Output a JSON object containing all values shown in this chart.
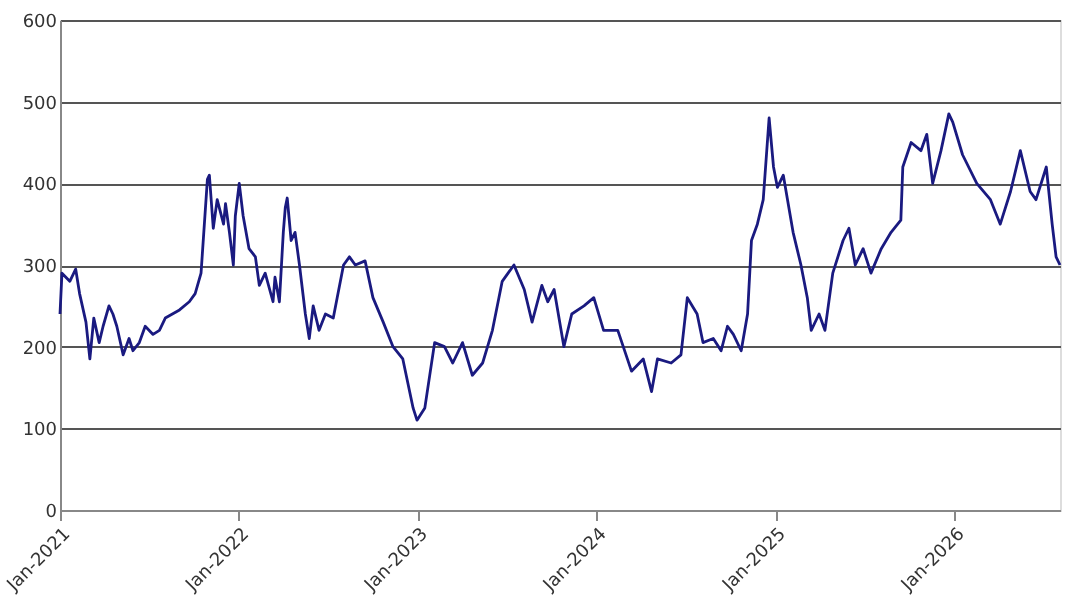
{
  "chart_data": {
    "type": "line",
    "x": [
      "2021-01-01",
      "2021-01-05",
      "2021-01-21",
      "2021-02-02",
      "2021-02-10",
      "2021-02-23",
      "2021-03-03",
      "2021-03-11",
      "2021-03-22",
      "2021-03-30",
      "2021-04-11",
      "2021-04-19",
      "2021-04-27",
      "2021-05-10",
      "2021-05-22",
      "2021-05-30",
      "2021-06-12",
      "2021-06-24",
      "2021-07-10",
      "2021-07-23",
      "2021-08-04",
      "2021-09-02",
      "2021-09-22",
      "2021-10-04",
      "2021-10-16",
      "2021-10-29",
      "2021-11-02",
      "2021-11-10",
      "2021-11-18",
      "2021-12-01",
      "2021-12-05",
      "2021-12-13",
      "2021-12-21",
      "2021-12-25",
      "2022-01-02",
      "2022-01-10",
      "2022-01-22",
      "2022-02-04",
      "2022-02-12",
      "2022-02-24",
      "2022-03-12",
      "2022-03-16",
      "2022-03-25",
      "2022-04-02",
      "2022-04-06",
      "2022-04-10",
      "2022-04-18",
      "2022-04-26",
      "2022-05-05",
      "2022-05-17",
      "2022-05-25",
      "2022-06-02",
      "2022-06-14",
      "2022-06-27",
      "2022-07-13",
      "2022-07-21",
      "2022-08-03",
      "2022-08-15",
      "2022-08-27",
      "2022-09-16",
      "2022-10-02",
      "2022-10-23",
      "2022-11-12",
      "2022-12-02",
      "2022-12-23",
      "2022-12-31",
      "2023-01-16",
      "2023-02-05",
      "2023-02-25",
      "2023-03-14",
      "2023-04-03",
      "2023-04-23",
      "2023-05-14",
      "2023-06-03",
      "2023-06-23",
      "2023-07-05",
      "2023-07-17",
      "2023-08-07",
      "2023-08-23",
      "2023-09-12",
      "2023-09-24",
      "2023-10-07",
      "2023-10-27",
      "2023-11-12",
      "2023-12-07",
      "2023-12-27",
      "2024-01-16",
      "2024-02-14",
      "2024-03-13",
      "2024-04-06",
      "2024-04-23",
      "2024-05-05",
      "2024-06-02",
      "2024-06-22",
      "2024-07-05",
      "2024-07-25",
      "2024-08-06",
      "2024-08-27",
      "2024-09-12",
      "2024-09-25",
      "2024-10-07",
      "2024-10-23",
      "2024-11-05",
      "2024-11-13",
      "2024-11-25",
      "2024-12-07",
      "2024-12-19",
      "2024-12-28",
      "2025-01-05",
      "2025-01-17",
      "2025-02-06",
      "2025-02-22",
      "2025-03-07",
      "2025-03-15",
      "2025-03-31",
      "2025-04-12",
      "2025-04-28",
      "2025-05-19",
      "2025-05-31",
      "2025-06-13",
      "2025-06-29",
      "2025-07-15",
      "2025-08-05",
      "2025-08-25",
      "2025-09-14",
      "2025-09-18",
      "2025-10-05",
      "2025-10-25",
      "2025-11-06",
      "2025-11-18",
      "2025-12-05",
      "2025-12-21",
      "2025-12-29",
      "2026-01-18",
      "2026-02-16",
      "2026-03-16",
      "2026-04-05",
      "2026-04-26",
      "2026-05-16",
      "2026-06-05",
      "2026-06-17",
      "2026-07-08",
      "2026-07-20",
      "2026-07-28",
      "2026-08-05"
    ],
    "series": [
      {
        "color": "#1a1a80",
        "values": [
          240,
          290,
          280,
          295,
          265,
          230,
          185,
          235,
          205,
          225,
          250,
          240,
          225,
          190,
          210,
          195,
          205,
          225,
          215,
          220,
          235,
          245,
          255,
          265,
          290,
          405,
          410,
          345,
          380,
          350,
          375,
          340,
          300,
          360,
          400,
          360,
          320,
          310,
          275,
          290,
          255,
          285,
          255,
          340,
          370,
          382,
          330,
          340,
          300,
          240,
          210,
          250,
          220,
          240,
          235,
          260,
          300,
          310,
          300,
          305,
          260,
          230,
          200,
          185,
          125,
          110,
          125,
          205,
          200,
          180,
          205,
          165,
          180,
          220,
          280,
          290,
          300,
          270,
          230,
          275,
          255,
          270,
          200,
          240,
          250,
          260,
          220,
          220,
          170,
          185,
          145,
          185,
          180,
          190,
          260,
          240,
          205,
          210,
          195,
          225,
          215,
          195,
          240,
          330,
          350,
          380,
          480,
          420,
          395,
          410,
          340,
          300,
          260,
          220,
          240,
          220,
          290,
          330,
          345,
          300,
          320,
          290,
          320,
          340,
          355,
          420,
          450,
          440,
          460,
          400,
          440,
          485,
          475,
          435,
          400,
          380,
          350,
          390,
          440,
          390,
          380,
          420,
          350,
          310,
          300
        ]
      }
    ],
    "xlim": [
      "2021-01-01",
      "2026-08-05"
    ],
    "xticks": [
      {
        "value": "2021-01-01",
        "label": "Jan-2021"
      },
      {
        "value": "2022-01-01",
        "label": "Jan-2022"
      },
      {
        "value": "2023-01-01",
        "label": "Jan-2023"
      },
      {
        "value": "2024-01-01",
        "label": "Jan-2024"
      },
      {
        "value": "2025-01-01",
        "label": "Jan-2025"
      },
      {
        "value": "2026-01-01",
        "label": "Jan-2026"
      }
    ],
    "ylim": [
      0,
      600
    ],
    "yticks": [
      0,
      100,
      200,
      300,
      400,
      500,
      600
    ],
    "grid": "y",
    "line_style": "solid",
    "marker": "none"
  }
}
